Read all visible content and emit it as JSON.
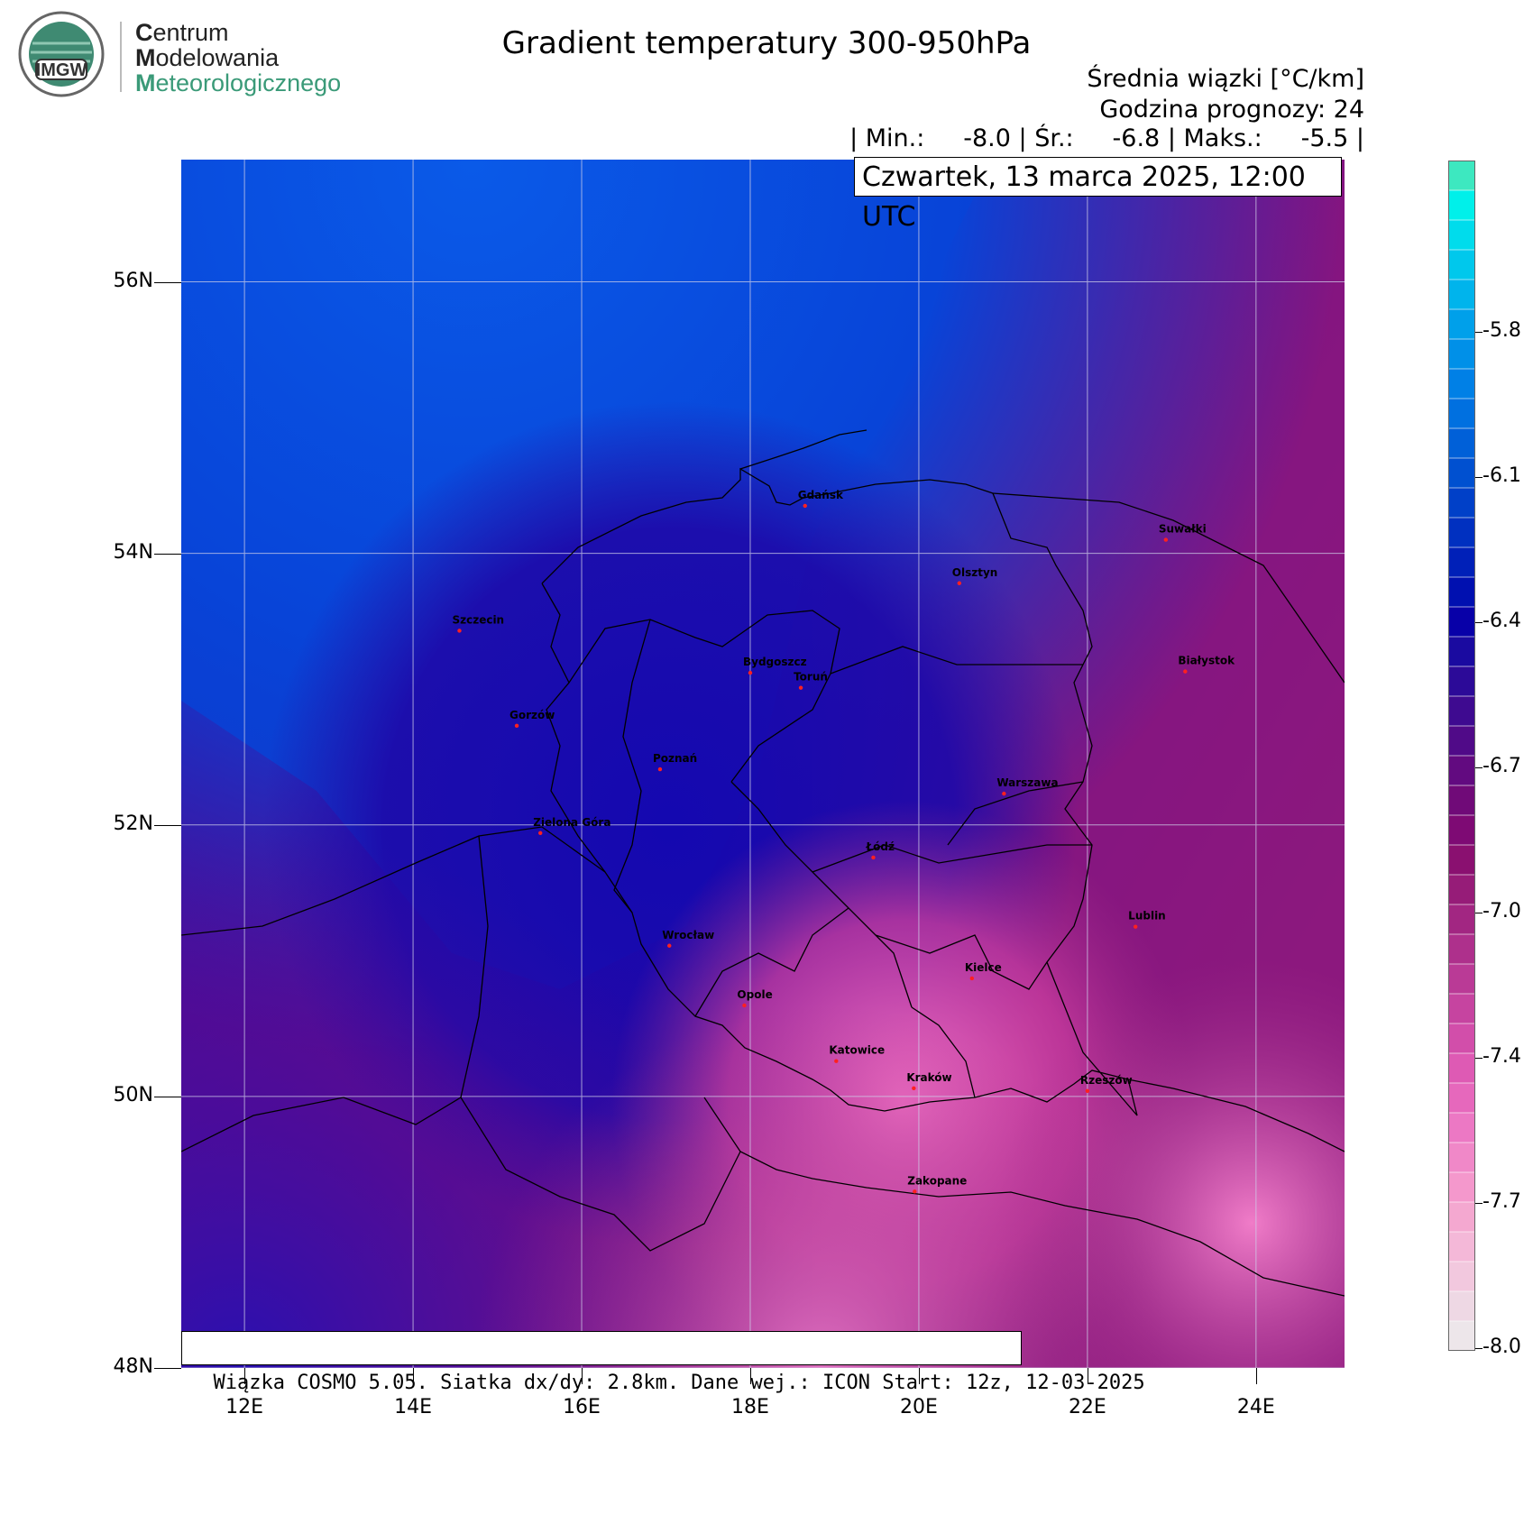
{
  "logo": {
    "badge_text": "IMGW",
    "lines": [
      {
        "first": "C",
        "rest": "entrum"
      },
      {
        "first": "M",
        "rest": "odelowania"
      },
      {
        "first": "M",
        "rest": "eteorologicznego"
      }
    ]
  },
  "title": "Gradient temperatury 300-950hPa",
  "subtitle_units": "Średnia wiązki [°C/km]",
  "forecast_hour": "Godzina prognozy: 24",
  "stats_line": "| Min.:     -8.0 | Śr.:     -6.8 | Maks.:     -5.5 |",
  "date_label": "Czwartek, 13 marca 2025, 12:00 UTC",
  "footer": "Wiązka COSMO 5.05. Siatka dx/dy: 2.8km. Dane wej.: ICON Start: 12z, 12-03-2025",
  "axes": {
    "lat_labels": [
      "56N",
      "54N",
      "52N",
      "50N",
      "48N"
    ],
    "lon_labels": [
      "12E",
      "14E",
      "16E",
      "18E",
      "20E",
      "22E",
      "24E"
    ]
  },
  "cities": [
    {
      "name": "Gdańsk",
      "lon": 18.65,
      "lat": 54.35
    },
    {
      "name": "Suwałki",
      "lon": 22.93,
      "lat": 54.1
    },
    {
      "name": "Olsztyn",
      "lon": 20.48,
      "lat": 53.78
    },
    {
      "name": "Białystok",
      "lon": 23.16,
      "lat": 53.13
    },
    {
      "name": "Szczecin",
      "lon": 14.55,
      "lat": 53.43
    },
    {
      "name": "Bydgoszcz",
      "lon": 18.0,
      "lat": 53.12
    },
    {
      "name": "Toruń",
      "lon": 18.6,
      "lat": 53.01
    },
    {
      "name": "Gorzów",
      "lon": 15.23,
      "lat": 52.73
    },
    {
      "name": "Poznań",
      "lon": 16.93,
      "lat": 52.41
    },
    {
      "name": "Warszawa",
      "lon": 21.01,
      "lat": 52.23
    },
    {
      "name": "Łódź",
      "lon": 19.46,
      "lat": 51.76
    },
    {
      "name": "Zielona Góra",
      "lon": 15.51,
      "lat": 51.94
    },
    {
      "name": "Lublin",
      "lon": 22.57,
      "lat": 51.25
    },
    {
      "name": "Wrocław",
      "lon": 17.04,
      "lat": 51.11
    },
    {
      "name": "Kielce",
      "lon": 20.63,
      "lat": 50.87
    },
    {
      "name": "Opole",
      "lon": 17.93,
      "lat": 50.67
    },
    {
      "name": "Rzeszów",
      "lon": 22.0,
      "lat": 50.04
    },
    {
      "name": "Katowice",
      "lon": 19.02,
      "lat": 50.26
    },
    {
      "name": "Kraków",
      "lon": 19.94,
      "lat": 50.06
    },
    {
      "name": "Zakopane",
      "lon": 19.95,
      "lat": 49.3
    }
  ],
  "colorbar": {
    "labels": [
      "-5.8",
      "-6.1",
      "-6.4",
      "-6.7",
      "-7.0",
      "-7.4",
      "-7.7",
      "-8.0"
    ],
    "colors": [
      "#3de8c0",
      "#00f0ea",
      "#00dcec",
      "#00c8ec",
      "#00b4ec",
      "#00a0ea",
      "#0090e8",
      "#0080e6",
      "#0070e0",
      "#0060d8",
      "#0050d0",
      "#0040c8",
      "#0030c0",
      "#0020b8",
      "#0010b0",
      "#0800a8",
      "#1a0aa0",
      "#2c0a98",
      "#3e0a90",
      "#500a88",
      "#620a80",
      "#700a78",
      "#7e0a74",
      "#8a1070",
      "#961c78",
      "#a22682",
      "#ae308c",
      "#ba3a96",
      "#c644a0",
      "#d24eaa",
      "#de5ab4",
      "#e668bc",
      "#ec78c4",
      "#f088c8",
      "#f498cc",
      "#f4a8d0",
      "#f4b8d8",
      "#f2c8de",
      "#eed8e4",
      "#ede6ea"
    ]
  }
}
